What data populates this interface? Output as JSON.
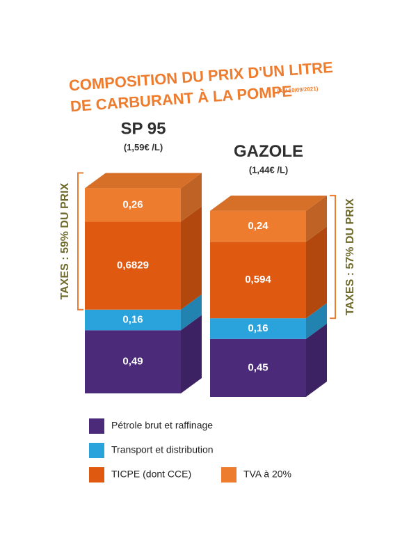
{
  "chart_data": {
    "type": "bar",
    "stacked": true,
    "title": [
      "COMPOSITION DU PRIX D'UN LITRE",
      "DE CARBURANT À LA POMPE"
    ],
    "title_note": "(AU 10/09/2021)",
    "categories": [
      "SP 95",
      "GAZOLE"
    ],
    "category_notes": [
      "(1,59€ /L)",
      "(1,44€ /L)"
    ],
    "annotations": [
      "TAXES : 59% DU PRIX",
      "TAXES : 57% DU PRIX"
    ],
    "series": [
      {
        "name": "Pétrole brut et raffinage",
        "color": "#4b2a7a",
        "values": [
          0.49,
          0.45
        ],
        "value_labels": [
          "0,49",
          "0,45"
        ]
      },
      {
        "name": "Transport et distribution",
        "color": "#2aa3dc",
        "values": [
          0.16,
          0.16
        ],
        "value_labels": [
          "0,16",
          "0,16"
        ]
      },
      {
        "name": "TICPE (dont CCE)",
        "color": "#df5a10",
        "values": [
          0.6829,
          0.594
        ],
        "value_labels": [
          "0,6829",
          "0,594"
        ]
      },
      {
        "name": "TVA à 20%",
        "color": "#ee7c2e",
        "values": [
          0.26,
          0.24
        ],
        "value_labels": [
          "0,26",
          "0,24"
        ]
      }
    ]
  }
}
